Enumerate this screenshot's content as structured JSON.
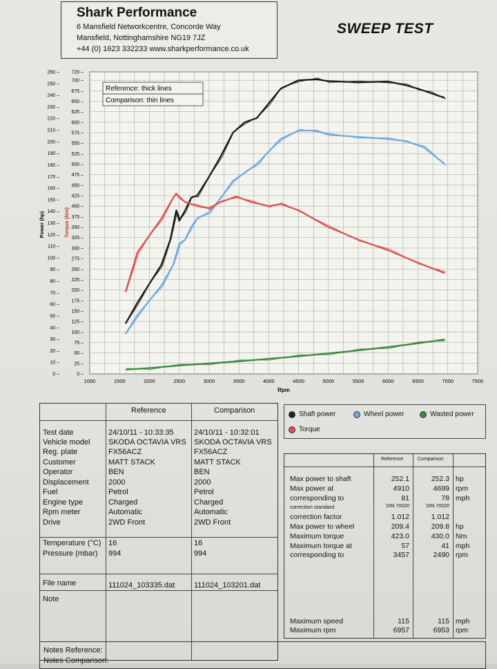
{
  "header": {
    "company": "Shark Performance",
    "address1": "6 Mansfield Networkcentre, Concorde Way",
    "address2": "Mansfield, Nottinghamshire NG19 7JZ",
    "contact": "+44 (0) 1623 332233 www.sharkperformance.co.uk",
    "report_title": "SWEEP TEST"
  },
  "chart_data": {
    "type": "line",
    "xlabel": "Rpm",
    "ylabel_power": "Power (hp)",
    "ylabel_torque": "Torque (Nm)",
    "xlim": [
      1000,
      7500
    ],
    "x_ticks": [
      "1000",
      "1500",
      "2000",
      "2500",
      "3000",
      "3500",
      "4000",
      "4500",
      "5000",
      "5500",
      "6000",
      "6500",
      "7000",
      "7500"
    ],
    "power_ylim": [
      0,
      260
    ],
    "torque_ylim": [
      0,
      720
    ],
    "power_ticks": [
      "0",
      "10",
      "20",
      "30",
      "40",
      "50",
      "60",
      "70",
      "80",
      "90",
      "100",
      "110",
      "120",
      "130",
      "140",
      "150",
      "160",
      "170",
      "180",
      "190",
      "200",
      "210",
      "220",
      "230",
      "240",
      "250",
      "260"
    ],
    "torque_ticks": [
      "0",
      "25",
      "50",
      "75",
      "100",
      "125",
      "150",
      "175",
      "200",
      "225",
      "250",
      "275",
      "300",
      "325",
      "350",
      "375",
      "400",
      "425",
      "450",
      "475",
      "500",
      "525",
      "550",
      "575",
      "600",
      "625",
      "650",
      "675",
      "700",
      "720"
    ],
    "annotations": [
      "Reference: thick lines",
      "Comparison: thin lines"
    ],
    "series": [
      {
        "name": "Shaft power",
        "color": "#1a1a1a",
        "axis": "torque",
        "x": [
          1600,
          1800,
          2000,
          2200,
          2350,
          2450,
          2500,
          2600,
          2700,
          2800,
          3000,
          3200,
          3400,
          3600,
          3800,
          4000,
          4200,
          4500,
          4800,
          5000,
          5500,
          6000,
          6300,
          6500,
          6700,
          6950
        ],
        "values": [
          120,
          170,
          215,
          260,
          320,
          390,
          365,
          390,
          420,
          425,
          470,
          520,
          575,
          600,
          610,
          645,
          680,
          700,
          702,
          698,
          695,
          697,
          688,
          680,
          670,
          658
        ]
      },
      {
        "name": "Wheel power",
        "color": "#6fa8dc",
        "axis": "torque",
        "x": [
          1600,
          1800,
          2000,
          2200,
          2400,
          2500,
          2600,
          2700,
          2800,
          3000,
          3200,
          3400,
          3600,
          3800,
          4000,
          4200,
          4500,
          4800,
          5000,
          5500,
          6000,
          6300,
          6600,
          6950
        ],
        "values": [
          95,
          140,
          175,
          210,
          260,
          310,
          320,
          350,
          370,
          385,
          420,
          460,
          480,
          500,
          530,
          560,
          580,
          580,
          570,
          565,
          560,
          555,
          540,
          500
        ]
      },
      {
        "name": "Torque",
        "color": "#d9534f",
        "axis": "torque",
        "x": [
          1600,
          1800,
          2000,
          2200,
          2400,
          2450,
          2500,
          2600,
          2800,
          3000,
          3200,
          3457,
          3700,
          4000,
          4200,
          4500,
          5000,
          5500,
          6000,
          6500,
          6950
        ],
        "values": [
          195,
          290,
          330,
          370,
          420,
          430,
          420,
          410,
          400,
          395,
          410,
          423,
          410,
          400,
          405,
          390,
          350,
          320,
          295,
          265,
          240
        ]
      },
      {
        "name": "Wasted power",
        "color": "#3b8a3b",
        "axis": "torque",
        "x": [
          1600,
          2000,
          2500,
          3000,
          3500,
          4000,
          4500,
          5000,
          5500,
          6000,
          6500,
          6950
        ],
        "values": [
          10,
          14,
          20,
          25,
          30,
          36,
          42,
          49,
          56,
          64,
          73,
          82
        ]
      }
    ],
    "legend": [
      "Shaft power",
      "Wheel power",
      "Wasted power",
      "Torque"
    ]
  },
  "legend_colors": {
    "Shaft power": "#222222",
    "Wheel power": "#6fa8dc",
    "Wasted power": "#3b8a3b",
    "Torque": "#d9534f"
  },
  "info": {
    "head_reference": "Reference",
    "head_comparison": "Comparison",
    "rows": [
      {
        "label": "Test date",
        "ref": "24/10/11 - 10:33:35",
        "cmp": "24/10/11 - 10:32:01"
      },
      {
        "label": "Vehicle model",
        "ref": "SKODA OCTAVIA VRS",
        "cmp": "SKODA OCTAVIA VRS"
      },
      {
        "label": "Reg. plate",
        "ref": "FX56ACZ",
        "cmp": "FX56ACZ"
      },
      {
        "label": "Customer",
        "ref": "MATT STACK",
        "cmp": "MATT STACK"
      },
      {
        "label": "Operator",
        "ref": "BEN",
        "cmp": "BEN"
      },
      {
        "label": "Displacement",
        "ref": "2000",
        "cmp": "2000"
      },
      {
        "label": "Fuel",
        "ref": "Petrol",
        "cmp": "Petrol"
      },
      {
        "label": "Engine type",
        "ref": "Charged",
        "cmp": "Charged"
      },
      {
        "label": "Rpm meter",
        "ref": "Automatic",
        "cmp": "Automatic"
      },
      {
        "label": "Drive",
        "ref": "2WD Front",
        "cmp": "2WD Front"
      }
    ],
    "temp_label": "Temperature (°C)",
    "temp_ref": "16",
    "temp_cmp": "16",
    "press_label": "Pressure (mbar)",
    "press_ref": "994",
    "press_cmp": "994",
    "file_label": "File name",
    "file_ref": "111024_103335.dat",
    "file_cmp": "111024_103201.dat",
    "note_label": "Note"
  },
  "results": {
    "head_reference": "Reference",
    "head_comparison": "Comparison",
    "rows": [
      {
        "label": "Max power to shaft",
        "ref": "252.1",
        "cmp": "252.3",
        "unit": "hp"
      },
      {
        "label": "Max power at",
        "ref": "4910",
        "cmp": "4699",
        "unit": "rpm"
      },
      {
        "label": "corresponding to",
        "ref": "81",
        "cmp": "78",
        "unit": "mph"
      },
      {
        "label": "correction standard",
        "ref": "DIN 70020",
        "cmp": "DIN 70020",
        "unit": "",
        "small": true
      },
      {
        "label": "correction factor",
        "ref": "1.012",
        "cmp": "1.012",
        "unit": ""
      },
      {
        "label": "Max power to wheel",
        "ref": "209.4",
        "cmp": "209.8",
        "unit": "hp"
      },
      {
        "label": "Maximum torque",
        "ref": "423.0",
        "cmp": "430.0",
        "unit": "Nm"
      },
      {
        "label": "Maximum torque at",
        "ref": "57",
        "cmp": "41",
        "unit": "mph"
      },
      {
        "label": "corresponding to",
        "ref": "3457",
        "cmp": "2490",
        "unit": "rpm"
      }
    ],
    "speed": {
      "label": "Maximum speed",
      "ref": "115",
      "cmp": "115",
      "unit": "mph"
    },
    "rpm": {
      "label": "Maximum rpm",
      "ref": "6957",
      "cmp": "6953",
      "unit": "rpm"
    }
  },
  "notes": {
    "reference": "Notes Reference:",
    "comparison": "Notes Comparison:"
  }
}
